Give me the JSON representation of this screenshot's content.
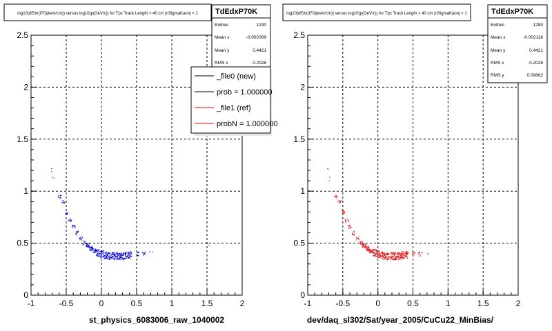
{
  "chart_data": [
    {
      "type": "scatter",
      "title": "log10(dEdx(I70)(keV/cm)) versus log10(p(GeV/c)) for Tpc Track Length > 40 cm |nSigmaKaon| < 1",
      "xlabel": "st_physics_6083006_raw_1040002",
      "ylabel": "",
      "xlim": [
        -1,
        2
      ],
      "ylim": [
        0,
        2.5
      ],
      "xticks": [
        "-1",
        "-0.5",
        "0",
        "0.5",
        "1",
        "1.5",
        "2"
      ],
      "yticks": [
        "0",
        "0.5",
        "1",
        "1.5",
        "2",
        "2.5"
      ],
      "grid": true,
      "series": [
        {
          "name": "",
          "color": "#0000ff",
          "x": [
            -0.72,
            -0.68,
            -0.6,
            -0.55,
            -0.5,
            -0.45,
            -0.4,
            -0.35,
            -0.3,
            -0.25,
            -0.2,
            -0.15,
            -0.1,
            -0.05,
            0.0,
            0.05,
            0.1,
            0.15,
            0.2,
            0.25,
            0.3,
            0.35,
            0.4,
            0.5,
            0.6,
            0.7,
            1.5
          ],
          "y": [
            1.2,
            1.12,
            0.95,
            0.9,
            0.8,
            0.72,
            0.66,
            0.6,
            0.55,
            0.51,
            0.48,
            0.45,
            0.43,
            0.41,
            0.4,
            0.39,
            0.38,
            0.38,
            0.38,
            0.38,
            0.38,
            0.39,
            0.39,
            0.4,
            0.4,
            0.41,
            0.5
          ]
        }
      ],
      "stats": {
        "header": "TdEdxP70K",
        "rows": [
          {
            "label": "Entries",
            "value": "1290"
          },
          {
            "label": "Mean x",
            "value": "-0.002089"
          },
          {
            "label": "Mean y",
            "value": "0.4421"
          },
          {
            "label": "RMS x",
            "value": "0.2026"
          }
        ]
      },
      "legend": {
        "placement": "top-right",
        "entries": [
          {
            "label": "_file0 (new)",
            "color": "#000000"
          },
          {
            "label": "prob = 1.000000",
            "color": "#000000"
          },
          {
            "label": "_file1 (ref)",
            "color": "#ff0000"
          },
          {
            "label": "probN = 1.000000",
            "color": "#ff0000"
          }
        ]
      }
    },
    {
      "type": "scatter",
      "title": "log10(dEdx(I70)(keV/cm)) versus log10(p(GeV/c)) for Tpc Track Length > 40 cm |nSigmaKaon| < 1",
      "xlabel": "dev/daq_sl302/Sat/year_2005/CuCu22_MinBias/",
      "ylabel": "",
      "xlim": [
        -1,
        2
      ],
      "ylim": [
        0,
        2.5
      ],
      "xticks": [
        "-1",
        "-0.5",
        "0",
        "0.5",
        "1",
        "1.5",
        "2"
      ],
      "yticks": [
        "0",
        "0.5",
        "1",
        "1.5",
        "2",
        "2.5"
      ],
      "grid": true,
      "series": [
        {
          "name": "",
          "color": "#ff0000",
          "x": [
            -0.72,
            -0.68,
            -0.6,
            -0.55,
            -0.5,
            -0.45,
            -0.4,
            -0.35,
            -0.3,
            -0.25,
            -0.2,
            -0.15,
            -0.1,
            -0.05,
            0.0,
            0.05,
            0.1,
            0.15,
            0.2,
            0.25,
            0.3,
            0.35,
            0.4,
            0.5,
            0.6,
            0.7,
            1.5
          ],
          "y": [
            1.22,
            1.12,
            0.95,
            0.9,
            0.8,
            0.72,
            0.66,
            0.6,
            0.55,
            0.51,
            0.48,
            0.45,
            0.43,
            0.41,
            0.4,
            0.39,
            0.38,
            0.38,
            0.38,
            0.38,
            0.38,
            0.39,
            0.39,
            0.4,
            0.4,
            0.41,
            0.5
          ]
        }
      ],
      "stats": {
        "header": "TdEdxP70K",
        "rows": [
          {
            "label": "Entries",
            "value": "1290"
          },
          {
            "label": "Mean x",
            "value": "-0.002118"
          },
          {
            "label": "Mean y",
            "value": "0.4421"
          },
          {
            "label": "RMS x",
            "value": "0.2026"
          },
          {
            "label": "RMS y",
            "value": "0.09662"
          }
        ]
      }
    }
  ]
}
